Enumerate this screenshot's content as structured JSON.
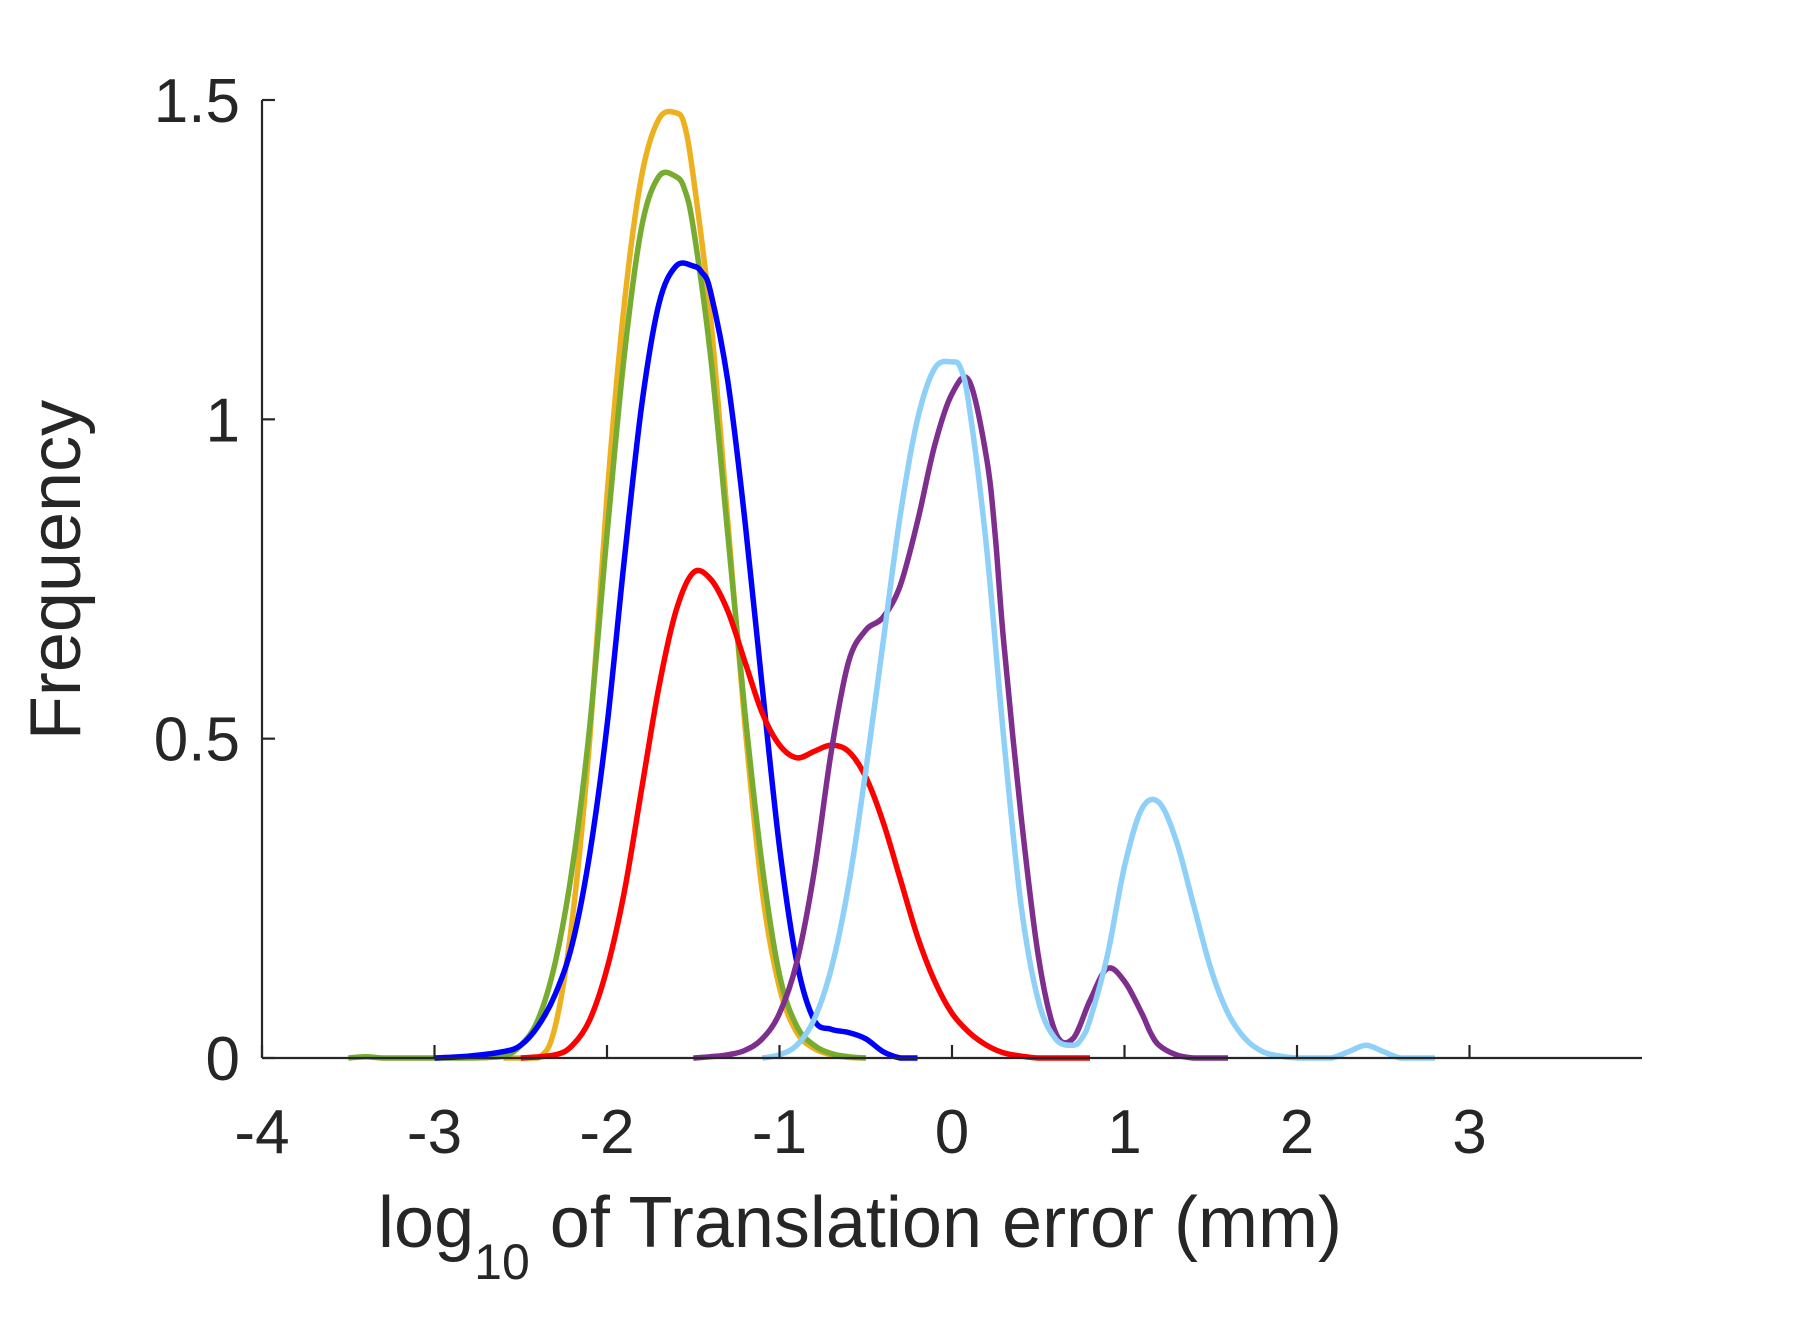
{
  "chart_data": {
    "type": "line",
    "title": "",
    "xlabel_main": "log",
    "xlabel_sub": "10",
    "xlabel_rest": " of Translation error (mm)",
    "ylabel": "Frequency",
    "xlim": [
      -4,
      4
    ],
    "ylim": [
      0,
      1.5
    ],
    "xticks": [
      -4,
      -3,
      -2,
      -1,
      0,
      1,
      2,
      3
    ],
    "xtick_labels": [
      "-4",
      "-3",
      "-2",
      "-1",
      "0",
      "1",
      "2",
      "3"
    ],
    "yticks": [
      0,
      0.5,
      1,
      1.5
    ],
    "ytick_labels": [
      "0",
      "0.5",
      "1",
      "1.5"
    ],
    "grid": false,
    "legend": "none",
    "series": [
      {
        "color": "#EDB120",
        "x": [
          -2.6,
          -2.4,
          -2.3,
          -2.2,
          -2.1,
          -2.0,
          -1.9,
          -1.8,
          -1.7,
          -1.6,
          -1.55,
          -1.5,
          -1.4,
          -1.3,
          -1.2,
          -1.1,
          -1.0,
          -0.9,
          -0.8,
          -0.7,
          -0.6,
          -0.5
        ],
        "y": [
          0.0,
          0.0,
          0.05,
          0.22,
          0.5,
          0.88,
          1.18,
          1.38,
          1.47,
          1.48,
          1.46,
          1.38,
          1.16,
          0.84,
          0.52,
          0.26,
          0.11,
          0.04,
          0.015,
          0.005,
          0.001,
          0.0
        ]
      },
      {
        "color": "#77AC30",
        "x": [
          -3.5,
          -3.4,
          -3.3,
          -3.2,
          -3.0,
          -2.8,
          -2.6,
          -2.5,
          -2.4,
          -2.3,
          -2.2,
          -2.1,
          -2.0,
          -1.9,
          -1.8,
          -1.7,
          -1.6,
          -1.55,
          -1.5,
          -1.4,
          -1.3,
          -1.2,
          -1.1,
          -1.0,
          -0.9,
          -0.8,
          -0.7,
          -0.6,
          -0.5
        ],
        "y": [
          0.0,
          0.002,
          0.0,
          0.0,
          0.0,
          0.0,
          0.003,
          0.02,
          0.06,
          0.15,
          0.3,
          0.52,
          0.82,
          1.1,
          1.3,
          1.38,
          1.38,
          1.36,
          1.3,
          1.1,
          0.82,
          0.54,
          0.3,
          0.13,
          0.05,
          0.02,
          0.007,
          0.002,
          0.0
        ]
      },
      {
        "color": "#0000FF",
        "x": [
          -3.0,
          -2.8,
          -2.6,
          -2.5,
          -2.4,
          -2.3,
          -2.2,
          -2.1,
          -2.0,
          -1.9,
          -1.8,
          -1.7,
          -1.6,
          -1.5,
          -1.45,
          -1.4,
          -1.3,
          -1.2,
          -1.1,
          -1.0,
          -0.9,
          -0.8,
          -0.7,
          -0.6,
          -0.5,
          -0.4,
          -0.3,
          -0.2
        ],
        "y": [
          0.0,
          0.003,
          0.01,
          0.02,
          0.05,
          0.1,
          0.18,
          0.32,
          0.52,
          0.78,
          1.02,
          1.18,
          1.24,
          1.24,
          1.23,
          1.2,
          1.06,
          0.84,
          0.58,
          0.33,
          0.15,
          0.06,
          0.045,
          0.04,
          0.03,
          0.01,
          0.0,
          0.0
        ]
      },
      {
        "color": "#FF0000",
        "x": [
          -2.5,
          -2.3,
          -2.2,
          -2.1,
          -2.0,
          -1.9,
          -1.8,
          -1.7,
          -1.6,
          -1.5,
          -1.4,
          -1.3,
          -1.2,
          -1.1,
          -1.0,
          -0.9,
          -0.8,
          -0.7,
          -0.6,
          -0.5,
          -0.4,
          -0.3,
          -0.2,
          -0.1,
          0.0,
          0.1,
          0.2,
          0.3,
          0.4,
          0.5,
          0.6,
          0.7,
          0.8
        ],
        "y": [
          0.0,
          0.005,
          0.02,
          0.06,
          0.14,
          0.26,
          0.42,
          0.58,
          0.7,
          0.76,
          0.75,
          0.7,
          0.62,
          0.54,
          0.49,
          0.47,
          0.48,
          0.49,
          0.48,
          0.44,
          0.37,
          0.28,
          0.19,
          0.12,
          0.07,
          0.04,
          0.02,
          0.008,
          0.003,
          0.0,
          0.0,
          0.0,
          0.0
        ]
      },
      {
        "color": "#7E2F8E",
        "x": [
          -1.5,
          -1.4,
          -1.3,
          -1.2,
          -1.1,
          -1.0,
          -0.9,
          -0.8,
          -0.7,
          -0.6,
          -0.5,
          -0.4,
          -0.3,
          -0.2,
          -0.1,
          0.0,
          0.1,
          0.2,
          0.25,
          0.3,
          0.4,
          0.5,
          0.6,
          0.7,
          0.8,
          0.9,
          1.0,
          1.1,
          1.15,
          1.2,
          1.3,
          1.4,
          1.5,
          1.6
        ],
        "y": [
          0.0,
          0.002,
          0.005,
          0.012,
          0.03,
          0.07,
          0.15,
          0.29,
          0.48,
          0.62,
          0.67,
          0.69,
          0.74,
          0.84,
          0.96,
          1.04,
          1.06,
          0.94,
          0.82,
          0.65,
          0.38,
          0.16,
          0.04,
          0.03,
          0.09,
          0.14,
          0.12,
          0.07,
          0.04,
          0.02,
          0.005,
          0.0,
          0.0,
          0.0
        ]
      },
      {
        "color": "#8ED0F8",
        "x": [
          -1.1,
          -1.0,
          -0.9,
          -0.8,
          -0.7,
          -0.6,
          -0.5,
          -0.4,
          -0.3,
          -0.2,
          -0.1,
          0.0,
          0.05,
          0.1,
          0.2,
          0.3,
          0.4,
          0.5,
          0.6,
          0.7,
          0.75,
          0.8,
          0.9,
          1.0,
          1.1,
          1.2,
          1.3,
          1.4,
          1.5,
          1.6,
          1.7,
          1.8,
          1.9,
          2.0,
          2.1,
          2.2,
          2.3,
          2.4,
          2.5,
          2.6,
          2.7,
          2.8
        ],
        "y": [
          0.0,
          0.005,
          0.02,
          0.06,
          0.14,
          0.27,
          0.45,
          0.65,
          0.85,
          1.0,
          1.08,
          1.09,
          1.08,
          1.02,
          0.8,
          0.5,
          0.24,
          0.09,
          0.03,
          0.02,
          0.03,
          0.06,
          0.16,
          0.3,
          0.39,
          0.4,
          0.34,
          0.24,
          0.14,
          0.07,
          0.03,
          0.01,
          0.003,
          0.0,
          0.0,
          0.0,
          0.01,
          0.02,
          0.01,
          0.0,
          0.0,
          0.0
        ]
      }
    ]
  }
}
